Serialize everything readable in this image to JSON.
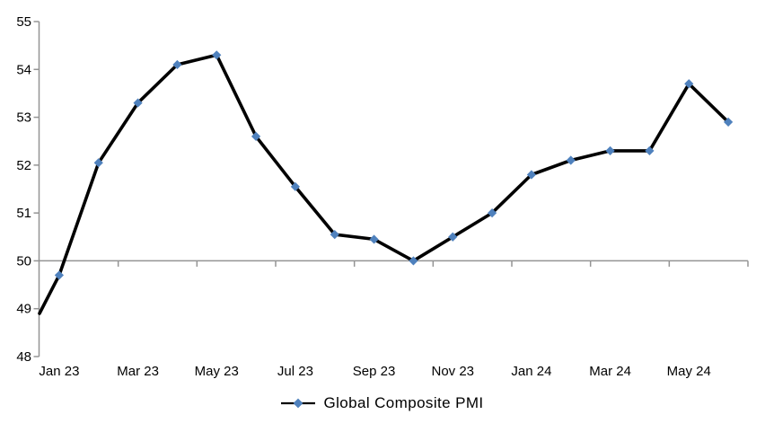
{
  "chart_data": {
    "type": "line",
    "title": "",
    "yaxis": {
      "min": 48,
      "max": 55,
      "step": 1,
      "tick_labels": [
        "48",
        "49",
        "50",
        "51",
        "52",
        "53",
        "54",
        "55"
      ],
      "axis_crosses_x_at": 50,
      "grid": false
    },
    "xaxis": {
      "tick_labels": [
        "Jan 23",
        "Mar 23",
        "May 23",
        "Jul 23",
        "Sep 23",
        "Nov 23",
        "Jan 24",
        "Mar 24",
        "May 24"
      ],
      "tick_mark_every_n_categories": 2,
      "labels_position": "low"
    },
    "series": [
      {
        "name": "Global Composite PMI",
        "marker": "diamond",
        "categories": [
          "Jan 23",
          "Feb 23",
          "Mar 23",
          "Apr 23",
          "May 23",
          "Jun 23",
          "Jul 23",
          "Aug 23",
          "Sep 23",
          "Oct 23",
          "Nov 23",
          "Dec 23",
          "Jan 24",
          "Feb 24",
          "Mar 24",
          "Apr 24",
          "May 24",
          "Jun 24"
        ],
        "values": [
          49.7,
          52.05,
          53.3,
          54.1,
          54.3,
          52.6,
          51.55,
          50.55,
          50.45,
          50.0,
          50.5,
          51.0,
          51.8,
          52.1,
          52.3,
          52.3,
          53.7,
          52.9
        ],
        "leading_edge_point": {
          "value": 48.9,
          "position": "line-enters-at-y-axis",
          "has_marker": false
        }
      }
    ],
    "legend": {
      "position": "bottom-center",
      "entries": [
        "Global Composite PMI"
      ]
    },
    "colors": {
      "line": "#000000",
      "marker": "#4F81BD",
      "axis": "#949494",
      "text": "#000000",
      "background": "#FFFFFF"
    }
  }
}
